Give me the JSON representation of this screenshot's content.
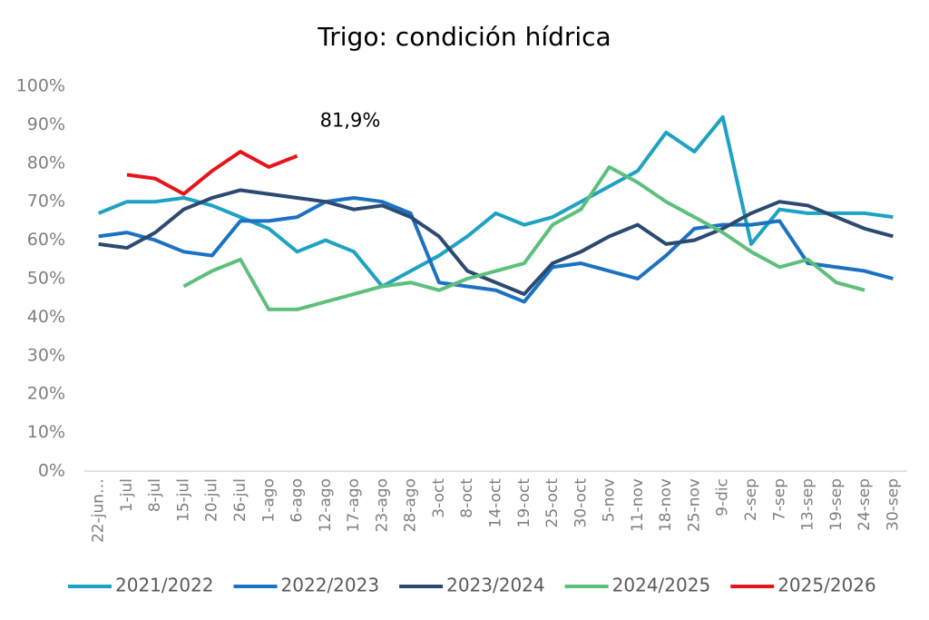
{
  "chart_data": {
    "type": "line",
    "title": "Trigo: condición hídrica",
    "categories": [
      "22-jun…",
      "1-jul",
      "8-jul",
      "15-jul",
      "20-jul",
      "26-jul",
      "1-ago",
      "6-ago",
      "12-ago",
      "17-ago",
      "23-ago",
      "28-ago",
      "3-oct",
      "8-oct",
      "14-oct",
      "19-oct",
      "25-oct",
      "30-oct",
      "5-nov",
      "11-nov",
      "18-nov",
      "25-nov",
      "9-dic",
      "2-sep",
      "7-sep",
      "13-sep",
      "19-sep",
      "24-sep",
      "30-sep"
    ],
    "series": [
      {
        "name": "2021/2022",
        "color": "#1ea2c4",
        "values": [
          67,
          70,
          70,
          71,
          69,
          66,
          63,
          57,
          60,
          57,
          48,
          52,
          56,
          61,
          67,
          64,
          66,
          70,
          74,
          78,
          88,
          83,
          92,
          59,
          68,
          67,
          67,
          67,
          66
        ]
      },
      {
        "name": "2022/2023",
        "color": "#1b72c2",
        "values": [
          61,
          62,
          60,
          57,
          56,
          65,
          65,
          66,
          70,
          71,
          70,
          67,
          49,
          48,
          47,
          44,
          53,
          54,
          52,
          50,
          56,
          63,
          64,
          64,
          65,
          54,
          53,
          52,
          50
        ]
      },
      {
        "name": "2023/2024",
        "color": "#2c4a70",
        "values": [
          59,
          58,
          62,
          68,
          71,
          73,
          72,
          71,
          70,
          68,
          69,
          66,
          61,
          52,
          49,
          46,
          54,
          57,
          61,
          64,
          59,
          60,
          63,
          67,
          70,
          69,
          66,
          63,
          61
        ]
      },
      {
        "name": "2024/2025",
        "color": "#5cc07c",
        "values": [
          null,
          null,
          null,
          48,
          52,
          55,
          42,
          42,
          44,
          46,
          48,
          49,
          47,
          50,
          52,
          54,
          64,
          68,
          79,
          75,
          70,
          66,
          62,
          57,
          53,
          55,
          49,
          47,
          null
        ]
      },
      {
        "name": "2025/2026",
        "color": "#e8141c",
        "values": [
          null,
          77,
          76,
          72,
          78,
          83,
          79,
          81.9,
          null,
          null,
          null,
          null,
          null,
          null,
          null,
          null,
          null,
          null,
          null,
          null,
          null,
          null,
          null,
          null,
          null,
          null,
          null,
          null,
          null
        ],
        "value_labels": [
          null,
          null,
          null,
          null,
          null,
          null,
          null,
          "81,9%",
          null,
          null,
          null,
          null,
          null,
          null,
          null,
          null,
          null,
          null,
          null,
          null,
          null,
          null,
          null,
          null,
          null,
          null,
          null,
          null,
          null
        ]
      }
    ],
    "ylim": [
      0,
      100
    ],
    "yticks": [
      {
        "value": 0,
        "label": "0%"
      },
      {
        "value": 10,
        "label": "10%"
      },
      {
        "value": 20,
        "label": "20%"
      },
      {
        "value": 30,
        "label": "30%"
      },
      {
        "value": 40,
        "label": "40%"
      },
      {
        "value": 50,
        "label": "50%"
      },
      {
        "value": 60,
        "label": "60%"
      },
      {
        "value": 70,
        "label": "70%"
      },
      {
        "value": 80,
        "label": "80%"
      },
      {
        "value": 90,
        "label": "90%"
      },
      {
        "value": 100,
        "label": "100%"
      }
    ],
    "grid": false,
    "legend": "bottom"
  }
}
